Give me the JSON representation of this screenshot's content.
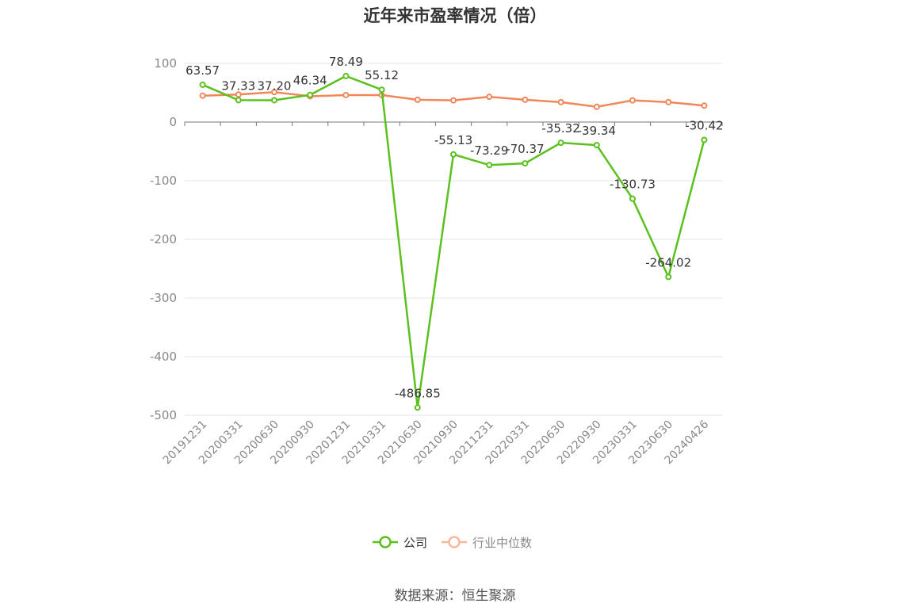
{
  "chart_data": {
    "type": "line",
    "title": "近年来市盈率情况（倍）",
    "categories": [
      "20191231",
      "20200331",
      "20200630",
      "20200930",
      "20201231",
      "20210331",
      "20210630",
      "20210930",
      "20211231",
      "20220331",
      "20220630",
      "20220930",
      "20230331",
      "20230630",
      "20240426"
    ],
    "ylim": [
      -500,
      100
    ],
    "yticks": [
      100,
      0,
      -100,
      -200,
      -300,
      -400,
      -500
    ],
    "grid": true,
    "legend_position": "bottom",
    "series": [
      {
        "name": "公司",
        "color": "#5ac11e",
        "values": [
          63.57,
          37.33,
          37.2,
          46.34,
          78.49,
          55.12,
          -486.85,
          -55.13,
          -73.29,
          -70.37,
          -35.32,
          -39.34,
          -130.73,
          -264.02,
          -30.42
        ],
        "labels": [
          "63.57",
          "37.33",
          "37.20",
          "46.34",
          "78.49",
          "55.12",
          "-486.85",
          "-55.13",
          "-73.29",
          "-70.37",
          "-35.32",
          "-39.34",
          "-130.73",
          "-264.02",
          "-30.42"
        ]
      },
      {
        "name": "行业中位数",
        "color": "#f0875a",
        "values": [
          45,
          47,
          51,
          44,
          46,
          46,
          38,
          37,
          43,
          38,
          34,
          26,
          37,
          34,
          28
        ]
      }
    ]
  },
  "source_text": "数据来源：恒生聚源"
}
